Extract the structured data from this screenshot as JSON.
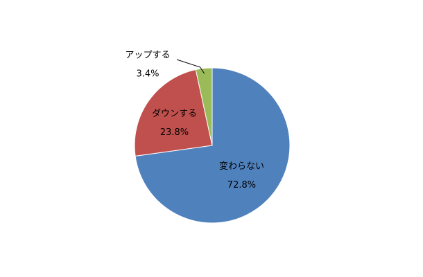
{
  "chart_data": {
    "type": "pie",
    "categories": [
      "変わらない",
      "ダウンする",
      "アップする"
    ],
    "values": [
      72.8,
      23.8,
      3.4
    ],
    "value_labels": [
      "72.8%",
      "23.8%",
      "3.4%"
    ],
    "colors": [
      "#4f81bd",
      "#c0504d",
      "#9bbb59"
    ]
  }
}
